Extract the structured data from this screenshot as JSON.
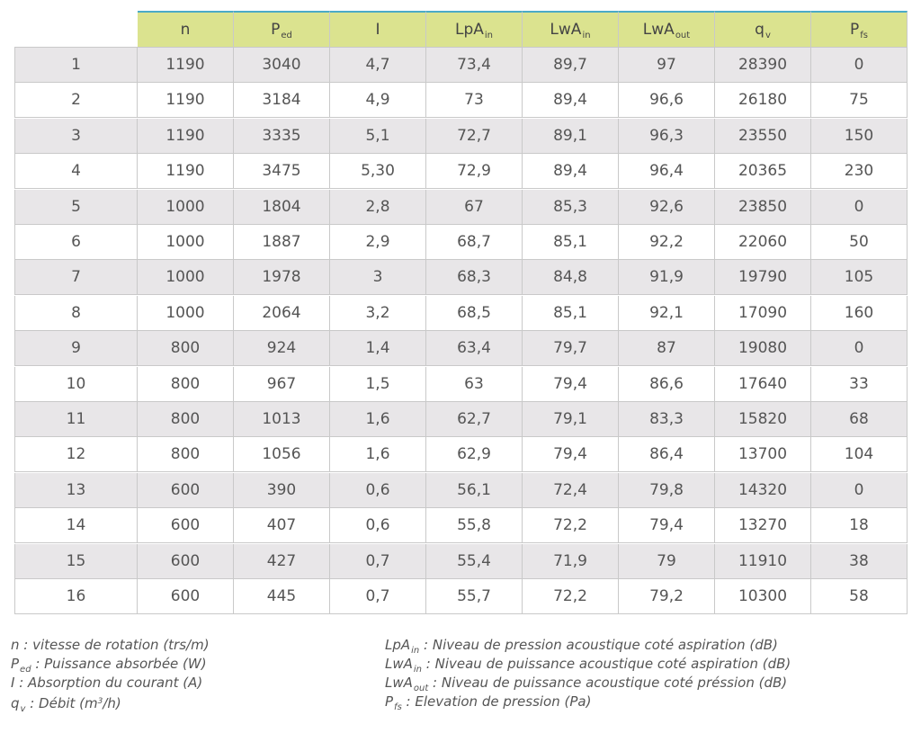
{
  "headers": [
    {
      "main": "n",
      "sub": ""
    },
    {
      "main": "P",
      "sub": "ed"
    },
    {
      "main": "I",
      "sub": ""
    },
    {
      "main": "LpA",
      "sub": "in"
    },
    {
      "main": "LwA",
      "sub": "in"
    },
    {
      "main": "LwA",
      "sub": "out"
    },
    {
      "main": "q",
      "sub": "v"
    },
    {
      "main": "P",
      "sub": "fs"
    }
  ],
  "rows": [
    [
      "1",
      "1190",
      "3040",
      "4,7",
      "73,4",
      "89,7",
      "97",
      "28390",
      "0"
    ],
    [
      "2",
      "1190",
      "3184",
      "4,9",
      "73",
      "89,4",
      "96,6",
      "26180",
      "75"
    ],
    [
      "3",
      "1190",
      "3335",
      "5,1",
      "72,7",
      "89,1",
      "96,3",
      "23550",
      "150"
    ],
    [
      "4",
      "1190",
      "3475",
      "5,30",
      "72,9",
      "89,4",
      "96,4",
      "20365",
      "230"
    ],
    [
      "5",
      "1000",
      "1804",
      "2,8",
      "67",
      "85,3",
      "92,6",
      "23850",
      "0"
    ],
    [
      "6",
      "1000",
      "1887",
      "2,9",
      "68,7",
      "85,1",
      "92,2",
      "22060",
      "50"
    ],
    [
      "7",
      "1000",
      "1978",
      "3",
      "68,3",
      "84,8",
      "91,9",
      "19790",
      "105"
    ],
    [
      "8",
      "1000",
      "2064",
      "3,2",
      "68,5",
      "85,1",
      "92,1",
      "17090",
      "160"
    ],
    [
      "9",
      "800",
      "924",
      "1,4",
      "63,4",
      "79,7",
      "87",
      "19080",
      "0"
    ],
    [
      "10",
      "800",
      "967",
      "1,5",
      "63",
      "79,4",
      "86,6",
      "17640",
      "33"
    ],
    [
      "11",
      "800",
      "1013",
      "1,6",
      "62,7",
      "79,1",
      "83,3",
      "15820",
      "68"
    ],
    [
      "12",
      "800",
      "1056",
      "1,6",
      "62,9",
      "79,4",
      "86,4",
      "13700",
      "104"
    ],
    [
      "13",
      "600",
      "390",
      "0,6",
      "56,1",
      "72,4",
      "79,8",
      "14320",
      "0"
    ],
    [
      "14",
      "600",
      "407",
      "0,6",
      "55,8",
      "72,2",
      "79,4",
      "13270",
      "18"
    ],
    [
      "15",
      "600",
      "427",
      "0,7",
      "55,4",
      "71,9",
      "79",
      "11910",
      "38"
    ],
    [
      "16",
      "600",
      "445",
      "0,7",
      "55,7",
      "72,2",
      "79,2",
      "10300",
      "58"
    ]
  ],
  "legend": {
    "left": [
      {
        "sym": "n",
        "sub": "",
        "sup": "",
        "text": " : vitesse de rotation (trs/m)"
      },
      {
        "sym": "P",
        "sub": "ed",
        "sup": "",
        "text": " : Puissance absorbée (W)"
      },
      {
        "sym": "I",
        "sub": "",
        "sup": "",
        "text": " : Absorption du courant (A)"
      },
      {
        "sym": "q",
        "sub": "v",
        "sup": "",
        "text": " : Débit (m",
        "sup_after": "3",
        "tail": "/h)"
      }
    ],
    "right": [
      {
        "sym": "LpA",
        "sub": "in",
        "text": " : Niveau de pression acoustique coté aspiration (dB)"
      },
      {
        "sym": "LwA",
        "sub": "in",
        "text": " : Niveau de puissance acoustique coté aspiration (dB)"
      },
      {
        "sym": "LwA",
        "sub": "out",
        "text": " : Niveau de puissance acoustique coté préssion (dB)"
      },
      {
        "sym": "P",
        "sub": "fs",
        "text": " : Elevation de pression (Pa)"
      }
    ]
  },
  "colors": {
    "header_bg": "#dbe38f",
    "header_top_border": "#4aaac8",
    "row_gray": "#e8e6e8",
    "row_white": "#ffffff",
    "grid": "#c9c9c9",
    "text": "#555555"
  }
}
